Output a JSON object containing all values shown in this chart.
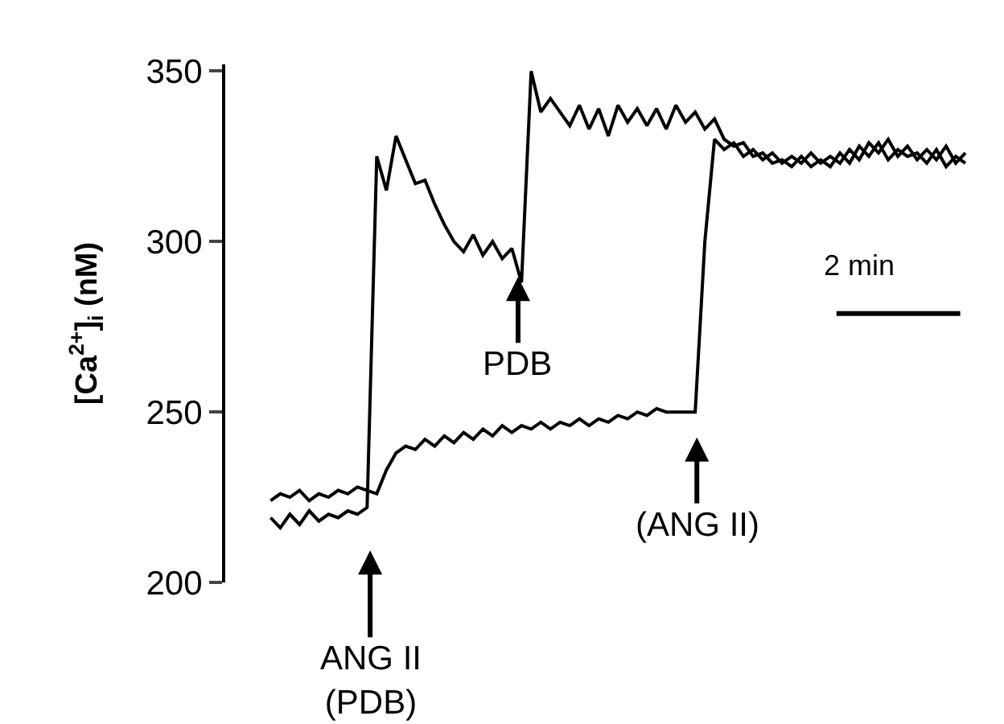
{
  "chart_data": {
    "type": "line",
    "ylabel": "[Ca$^{2+}$]$_{i}$ (nM)",
    "ylim": [
      200,
      352
    ],
    "yticks": [
      200,
      250,
      300,
      350
    ],
    "tick_labels": "y",
    "marker": "none",
    "line_style": "solid",
    "categories": [
      null,
      null,
      null,
      null,
      null,
      null,
      null,
      null,
      null,
      null,
      null,
      null,
      null,
      null,
      null,
      null,
      null,
      null,
      null,
      null,
      null,
      null,
      null,
      null,
      null,
      null,
      null,
      null,
      null,
      null,
      null,
      null,
      null,
      null,
      null,
      null,
      null,
      null,
      null,
      null,
      null,
      null,
      null,
      null,
      null,
      null,
      null,
      null,
      null,
      null,
      null,
      null,
      null,
      null,
      null,
      null,
      null,
      null,
      null,
      null,
      null,
      null,
      null,
      null,
      null,
      null,
      null,
      null,
      null,
      null,
      null,
      null,
      null
    ],
    "series": [
      {
        "color": "#000000",
        "values": [
          219,
          216,
          220,
          217,
          221,
          218,
          220,
          219,
          221,
          220,
          222,
          325,
          315,
          331,
          324,
          317,
          318,
          311,
          305,
          300,
          297,
          302,
          296,
          300,
          295,
          298,
          288,
          350,
          338,
          342,
          338,
          334,
          340,
          333,
          339,
          331,
          340,
          335,
          339,
          334,
          339,
          333,
          340,
          335,
          338,
          333,
          336,
          330,
          328,
          329,
          325,
          326,
          323,
          324,
          322,
          325,
          322,
          324,
          322,
          326,
          323,
          328,
          325,
          329,
          324,
          327,
          325,
          326,
          323,
          327,
          322,
          325,
          323
        ]
      },
      {
        "color": "#000000",
        "values": [
          224,
          226,
          225,
          227,
          224,
          226,
          225,
          227,
          226,
          228,
          227,
          226,
          233,
          238,
          240,
          239,
          242,
          240,
          243,
          241,
          244,
          242,
          245,
          243,
          246,
          244,
          246,
          245,
          247,
          245,
          247,
          246,
          248,
          246,
          248,
          247,
          249,
          248,
          250,
          249,
          251,
          250,
          250,
          250,
          250,
          300,
          330,
          327,
          329,
          325,
          327,
          324,
          326,
          323,
          325,
          323,
          326,
          323,
          325,
          323,
          327,
          324,
          329,
          326,
          330,
          325,
          328,
          324,
          327,
          324,
          328,
          323,
          326
        ]
      }
    ],
    "annotations": [
      "ANG II\n(PDB)",
      "PDB",
      "(ANG II)",
      "2 min"
    ]
  }
}
